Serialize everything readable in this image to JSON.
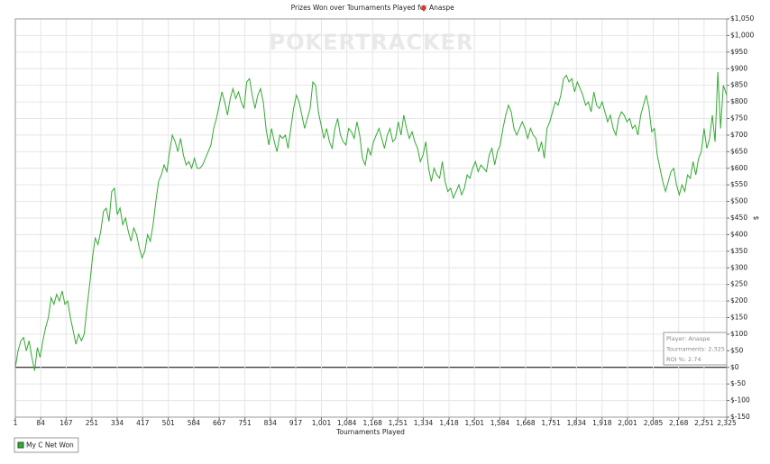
{
  "chart_data": {
    "type": "line",
    "title": "Prizes Won over Tournaments Played for",
    "title_player": "Anaspe",
    "watermark": "POKERTRACKER",
    "xlabel": "Tournaments Played",
    "y2label": "$",
    "info_lines": [
      "Player: Anaspe",
      "Tournaments: 2,325",
      "ROI %: 2.74"
    ],
    "grid": true,
    "legend": "bottom-left",
    "xlim": [
      1,
      2325
    ],
    "xticks": [
      1,
      84,
      167,
      251,
      334,
      417,
      501,
      584,
      667,
      751,
      834,
      917,
      {
        "value": 1001,
        "label": "1,001"
      },
      {
        "value": 1084,
        "label": "1,084"
      },
      {
        "value": 1168,
        "label": "1,168"
      },
      {
        "value": 1251,
        "label": "1,251"
      },
      {
        "value": 1334,
        "label": "1,334"
      },
      {
        "value": 1418,
        "label": "1,418"
      },
      {
        "value": 1501,
        "label": "1,501"
      },
      {
        "value": 1584,
        "label": "1,584"
      },
      {
        "value": 1668,
        "label": "1,668"
      },
      {
        "value": 1751,
        "label": "1,751"
      },
      {
        "value": 1834,
        "label": "1,834"
      },
      {
        "value": 1918,
        "label": "1,918"
      },
      {
        "value": 2001,
        "label": "2,001"
      },
      {
        "value": 2085,
        "label": "2,085"
      },
      {
        "value": 2168,
        "label": "2,168"
      },
      {
        "value": 2251,
        "label": "2,251"
      },
      {
        "value": 2325,
        "label": "2,325"
      }
    ],
    "y2lim": [
      -150,
      1050
    ],
    "y2ticks": [
      {
        "value": -150,
        "label": "$-150"
      },
      {
        "value": -100,
        "label": "$-100"
      },
      {
        "value": -50,
        "label": "$-50"
      },
      {
        "value": 0,
        "label": "$0"
      },
      {
        "value": 50,
        "label": "$50"
      },
      {
        "value": 100,
        "label": "$100"
      },
      {
        "value": 150,
        "label": "$150"
      },
      {
        "value": 200,
        "label": "$200"
      },
      {
        "value": 250,
        "label": "$250"
      },
      {
        "value": 300,
        "label": "$300"
      },
      {
        "value": 350,
        "label": "$350"
      },
      {
        "value": 400,
        "label": "$400"
      },
      {
        "value": 450,
        "label": "$450"
      },
      {
        "value": 500,
        "label": "$500"
      },
      {
        "value": 550,
        "label": "$550"
      },
      {
        "value": 600,
        "label": "$600"
      },
      {
        "value": 650,
        "label": "$650"
      },
      {
        "value": 700,
        "label": "$700"
      },
      {
        "value": 750,
        "label": "$750"
      },
      {
        "value": 800,
        "label": "$800"
      },
      {
        "value": 850,
        "label": "$850"
      },
      {
        "value": 900,
        "label": "$900"
      },
      {
        "value": 950,
        "label": "$950"
      },
      {
        "value": 1000,
        "label": "$1,000"
      },
      {
        "value": 1050,
        "label": "$1,050"
      }
    ],
    "x": [
      1,
      10,
      19,
      28,
      37,
      46,
      55,
      64,
      73,
      82,
      91,
      100,
      109,
      118,
      127,
      136,
      145,
      154,
      163,
      172,
      181,
      190,
      199,
      208,
      217,
      226,
      235,
      244,
      253,
      262,
      271,
      280,
      289,
      298,
      307,
      316,
      325,
      334,
      343,
      352,
      361,
      370,
      379,
      388,
      397,
      406,
      415,
      424,
      433,
      442,
      451,
      460,
      469,
      478,
      487,
      496,
      505,
      514,
      523,
      532,
      541,
      550,
      559,
      568,
      577,
      586,
      595,
      604,
      613,
      622,
      631,
      640,
      649,
      658,
      667,
      676,
      685,
      694,
      703,
      712,
      721,
      730,
      739,
      748,
      757,
      766,
      775,
      784,
      793,
      802,
      811,
      820,
      829,
      838,
      847,
      856,
      865,
      874,
      883,
      892,
      901,
      910,
      919,
      928,
      937,
      946,
      955,
      964,
      973,
      982,
      991,
      1000,
      1009,
      1018,
      1027,
      1036,
      1045,
      1054,
      1063,
      1072,
      1081,
      1090,
      1099,
      1108,
      1117,
      1126,
      1135,
      1144,
      1153,
      1162,
      1171,
      1180,
      1189,
      1198,
      1207,
      1216,
      1225,
      1234,
      1243,
      1252,
      1261,
      1270,
      1279,
      1288,
      1297,
      1306,
      1315,
      1324,
      1333,
      1342,
      1351,
      1360,
      1369,
      1378,
      1387,
      1396,
      1405,
      1414,
      1423,
      1432,
      1441,
      1450,
      1459,
      1468,
      1477,
      1486,
      1495,
      1504,
      1513,
      1522,
      1531,
      1540,
      1549,
      1558,
      1567,
      1576,
      1585,
      1594,
      1603,
      1612,
      1621,
      1630,
      1639,
      1648,
      1657,
      1666,
      1675,
      1684,
      1693,
      1702,
      1711,
      1720,
      1729,
      1738,
      1747,
      1756,
      1765,
      1774,
      1783,
      1792,
      1801,
      1810,
      1819,
      1828,
      1837,
      1846,
      1855,
      1864,
      1873,
      1882,
      1891,
      1900,
      1909,
      1918,
      1927,
      1936,
      1945,
      1954,
      1963,
      1972,
      1981,
      1990,
      1999,
      2008,
      2017,
      2026,
      2035,
      2044,
      2053,
      2062,
      2071,
      2080,
      2089,
      2098,
      2107,
      2116,
      2125,
      2134,
      2143,
      2152,
      2161,
      2170,
      2179,
      2188,
      2197,
      2206,
      2215,
      2224,
      2233,
      2242,
      2251,
      2260,
      2269,
      2278,
      2287,
      2296,
      2305,
      2314,
      2325
    ],
    "series": [
      {
        "name": "My C Net Won",
        "color": "#33aa33",
        "axis": "y2",
        "values": [
          0,
          50,
          80,
          90,
          50,
          80,
          30,
          -10,
          60,
          30,
          80,
          120,
          150,
          210,
          190,
          220,
          200,
          230,
          190,
          200,
          150,
          110,
          70,
          100,
          80,
          100,
          180,
          250,
          330,
          390,
          370,
          410,
          470,
          480,
          440,
          530,
          540,
          460,
          480,
          430,
          450,
          410,
          380,
          420,
          400,
          360,
          330,
          350,
          400,
          380,
          430,
          500,
          560,
          580,
          610,
          590,
          650,
          700,
          680,
          650,
          690,
          640,
          610,
          620,
          600,
          630,
          600,
          600,
          610,
          630,
          650,
          670,
          720,
          750,
          790,
          830,
          800,
          760,
          810,
          840,
          810,
          830,
          800,
          780,
          860,
          870,
          820,
          780,
          820,
          840,
          800,
          720,
          670,
          720,
          680,
          650,
          700,
          690,
          700,
          660,
          720,
          780,
          820,
          800,
          760,
          720,
          750,
          780,
          860,
          850,
          770,
          730,
          690,
          720,
          680,
          660,
          720,
          750,
          700,
          680,
          670,
          720,
          710,
          690,
          740,
          700,
          630,
          610,
          660,
          640,
          680,
          700,
          720,
          690,
          660,
          700,
          720,
          680,
          690,
          740,
          700,
          760,
          720,
          690,
          710,
          680,
          660,
          620,
          640,
          680,
          600,
          560,
          600,
          580,
          570,
          620,
          560,
          530,
          540,
          510,
          530,
          550,
          520,
          540,
          580,
          570,
          600,
          620,
          590,
          610,
          600,
          590,
          640,
          660,
          610,
          650,
          670,
          720,
          760,
          790,
          770,
          720,
          700,
          720,
          740,
          720,
          690,
          720,
          700,
          690,
          650,
          680,
          630,
          720,
          740,
          770,
          800,
          790,
          820,
          870,
          880,
          860,
          870,
          830,
          860,
          840,
          820,
          790,
          800,
          770,
          830,
          790,
          780,
          800,
          770,
          740,
          760,
          720,
          700,
          750,
          770,
          760,
          740,
          750,
          720,
          730,
          700,
          760,
          790,
          820,
          780,
          710,
          720,
          640,
          600,
          560,
          530,
          560,
          590,
          600,
          550,
          520,
          550,
          530,
          580,
          570,
          620,
          580,
          630,
          650,
          720,
          660,
          690,
          760,
          680,
          890,
          720,
          850,
          820
        ]
      }
    ]
  }
}
